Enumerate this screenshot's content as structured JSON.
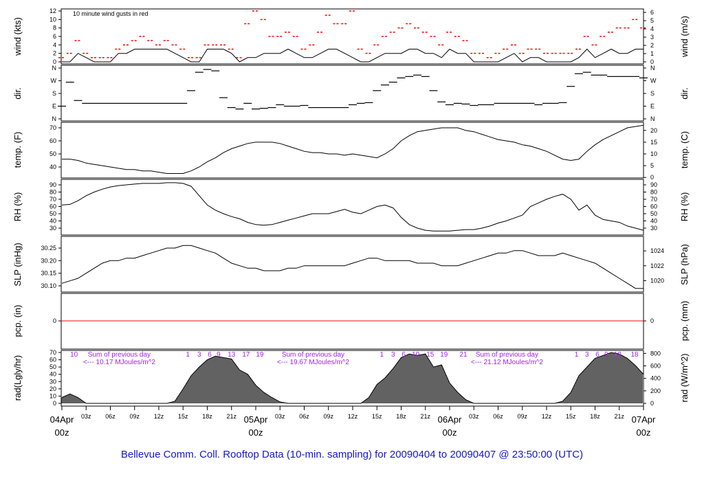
{
  "title": "Bellevue Comm. Coll. Rooftop Data (10-min. sampling) for 20090404  to  20090407 @ 23:50:00  (UTC)",
  "colors": {
    "title": "#1515d0",
    "gust": "#ff0000",
    "day_label": "#ff0000",
    "annotation": "#a020f0",
    "pcp_line": "#ff0000",
    "rad_fill": "#999999"
  },
  "chart_data": {
    "type": "line",
    "x_unit": "hours since 04Apr 00z",
    "x_range": [
      0,
      72
    ],
    "x_ticks": [
      "03z",
      "06z",
      "09z",
      "12z",
      "15z",
      "18z",
      "21z"
    ],
    "day_labels": [
      {
        "day": "04Apr",
        "hour": "00z",
        "at_hour": 0
      },
      {
        "day": "05Apr",
        "hour": "00z",
        "at_hour": 24
      },
      {
        "day": "06Apr",
        "hour": "00z",
        "at_hour": 48
      },
      {
        "day": "07Apr",
        "hour": "00z",
        "at_hour": 72
      }
    ],
    "panels": {
      "wind": {
        "left_label": "wind (kts)",
        "right_label": "wind (m/s)",
        "left_ticks": [
          0,
          2,
          4,
          6,
          8,
          10,
          12
        ],
        "right_ticks": [
          0,
          1,
          2,
          3,
          4,
          5,
          6
        ],
        "annotation": "10  minute wind gusts in red",
        "speed": [
          0,
          0,
          2,
          1,
          0,
          0,
          0,
          2,
          2,
          3,
          3,
          3,
          3,
          3,
          2,
          1,
          0,
          0,
          3,
          3,
          3,
          2,
          0,
          1,
          1,
          2,
          2,
          2,
          3,
          2,
          1,
          1,
          2,
          3,
          3,
          2,
          1,
          0,
          0,
          1,
          2,
          2,
          2,
          3,
          3,
          2,
          2,
          1,
          3,
          2,
          2,
          0,
          0,
          0,
          0,
          1,
          2,
          0,
          1,
          1,
          0,
          0,
          0,
          0,
          1,
          3,
          1,
          2,
          3,
          2,
          2,
          3,
          3
        ],
        "gust": [
          1,
          2,
          5,
          2,
          1,
          1,
          1,
          3,
          4,
          5,
          6,
          5,
          4,
          5,
          4,
          3,
          1,
          1,
          4,
          4,
          4,
          3,
          1,
          9,
          12,
          10,
          6,
          6,
          7,
          6,
          3,
          4,
          7,
          11,
          9,
          9,
          12,
          3,
          2,
          4,
          6,
          7,
          8,
          9,
          8,
          7,
          6,
          4,
          7,
          6,
          5,
          2,
          2,
          1,
          2,
          3,
          4,
          2,
          3,
          3,
          2,
          2,
          2,
          2,
          3,
          6,
          4,
          6,
          7,
          8,
          8,
          10,
          8
        ]
      },
      "dir": {
        "left_label": "dir.",
        "right_label": "dir.",
        "ticks": [
          "N",
          "E",
          "S",
          "W",
          "N"
        ],
        "degrees": [
          90,
          260,
          130,
          110,
          110,
          110,
          110,
          110,
          110,
          110,
          110,
          110,
          110,
          110,
          110,
          110,
          200,
          330,
          350,
          340,
          150,
          80,
          70,
          110,
          70,
          75,
          80,
          100,
          90,
          90,
          95,
          80,
          80,
          80,
          80,
          80,
          100,
          110,
          115,
          200,
          240,
          260,
          290,
          300,
          310,
          300,
          200,
          120,
          100,
          110,
          105,
          95,
          100,
          100,
          110,
          110,
          110,
          110,
          110,
          100,
          110,
          110,
          115,
          230,
          320,
          330,
          310,
          310,
          300,
          300,
          300,
          300,
          290
        ]
      },
      "temp": {
        "left_label": "temp. (F)",
        "right_label": "temp. (C)",
        "left_ticks": [
          40,
          50,
          60,
          70
        ],
        "right_ticks": [
          0,
          5,
          10,
          15,
          20
        ],
        "values": [
          46,
          46,
          45,
          43,
          42,
          41,
          40,
          39,
          38,
          38,
          37,
          37,
          36,
          35,
          35,
          35,
          37,
          40,
          44,
          47,
          51,
          54,
          56,
          58,
          59,
          59,
          59,
          58,
          56,
          54,
          52,
          51,
          51,
          50,
          50,
          49,
          50,
          49,
          48,
          47,
          50,
          54,
          60,
          64,
          67,
          68,
          69,
          70,
          70,
          70,
          68,
          67,
          65,
          63,
          61,
          60,
          59,
          57,
          56,
          54,
          52,
          49,
          46,
          45,
          46,
          52,
          57,
          61,
          64,
          67,
          70,
          71,
          72
        ]
      },
      "rh": {
        "left_label": "RH (%)",
        "right_label": "RH (%)",
        "ticks": [
          30,
          40,
          50,
          60,
          70,
          80,
          90
        ],
        "values": [
          62,
          63,
          68,
          75,
          80,
          84,
          87,
          89,
          90,
          91,
          92,
          92,
          92,
          93,
          93,
          92,
          88,
          75,
          62,
          55,
          50,
          46,
          43,
          38,
          35,
          34,
          35,
          38,
          41,
          44,
          47,
          50,
          50,
          50,
          53,
          56,
          52,
          50,
          55,
          60,
          62,
          58,
          45,
          35,
          30,
          27,
          26,
          26,
          26,
          27,
          28,
          28,
          30,
          33,
          37,
          40,
          44,
          48,
          60,
          65,
          70,
          74,
          77,
          70,
          55,
          62,
          48,
          42,
          40,
          38,
          33,
          30,
          27
        ]
      },
      "slp": {
        "left_label": "SLP (inHg)",
        "right_label": "SLP (hPa)",
        "left_ticks": [
          "30.10",
          "30.15",
          "30.20",
          "30.25"
        ],
        "right_ticks": [
          1020,
          1022,
          1024
        ],
        "values": [
          30.11,
          30.12,
          30.13,
          30.15,
          30.17,
          30.19,
          30.2,
          30.2,
          30.21,
          30.21,
          30.22,
          30.23,
          30.24,
          30.25,
          30.25,
          30.26,
          30.26,
          30.25,
          30.24,
          30.23,
          30.21,
          30.19,
          30.18,
          30.17,
          30.17,
          30.16,
          30.16,
          30.16,
          30.17,
          30.17,
          30.18,
          30.18,
          30.18,
          30.18,
          30.18,
          30.18,
          30.19,
          30.2,
          30.21,
          30.21,
          30.2,
          30.2,
          30.2,
          30.2,
          30.19,
          30.19,
          30.19,
          30.18,
          30.18,
          30.18,
          30.19,
          30.2,
          30.21,
          30.22,
          30.23,
          30.23,
          30.24,
          30.24,
          30.23,
          30.22,
          30.22,
          30.22,
          30.23,
          30.22,
          30.21,
          30.2,
          30.19,
          30.17,
          30.15,
          30.13,
          30.11,
          30.09,
          30.09
        ]
      },
      "pcp": {
        "left_label": "pcp. (in)",
        "right_label": "pcp. (mm)",
        "left_ticks": [
          0
        ],
        "right_ticks": [
          0
        ],
        "values_total": 0
      },
      "rad": {
        "left_label": "rad(Lgly/hr)",
        "right_label": "rad (W/m^2)",
        "left_ticks": [
          0,
          10,
          20,
          30,
          40,
          50,
          60,
          70
        ],
        "right_ticks": [
          0,
          200,
          400,
          600,
          800
        ],
        "values": [
          8,
          13,
          8,
          0,
          0,
          0,
          0,
          0,
          0,
          0,
          0,
          0,
          0,
          0,
          3,
          20,
          38,
          50,
          60,
          65,
          63,
          61,
          46,
          40,
          25,
          15,
          8,
          2,
          0,
          0,
          0,
          0,
          0,
          0,
          0,
          0,
          0,
          0,
          8,
          26,
          35,
          48,
          63,
          68,
          66,
          68,
          50,
          53,
          28,
          15,
          5,
          0,
          0,
          0,
          0,
          0,
          0,
          0,
          0,
          0,
          0,
          0,
          3,
          15,
          38,
          50,
          62,
          66,
          70,
          68,
          62,
          52,
          40
        ],
        "hour_labels": [
          {
            "text": "10",
            "at_hour": 1.5
          },
          {
            "text": "1",
            "at_hour": 15.6
          },
          {
            "text": "3",
            "at_hour": 17.0
          },
          {
            "text": "6",
            "at_hour": 18.3
          },
          {
            "text": "9",
            "at_hour": 19.4
          },
          {
            "text": "13",
            "at_hour": 21.0
          },
          {
            "text": "17",
            "at_hour": 22.8
          },
          {
            "text": "19",
            "at_hour": 24.5
          },
          {
            "text": "1",
            "at_hour": 39.6
          },
          {
            "text": "3",
            "at_hour": 41.0
          },
          {
            "text": "6",
            "at_hour": 42.3
          },
          {
            "text": "10",
            "at_hour": 43.8
          },
          {
            "text": "15",
            "at_hour": 45.6
          },
          {
            "text": "19",
            "at_hour": 47.3
          },
          {
            "text": "21",
            "at_hour": 49.7
          },
          {
            "text": "1",
            "at_hour": 63.7
          },
          {
            "text": "3",
            "at_hour": 65.0
          },
          {
            "text": "6",
            "at_hour": 66.3
          },
          {
            "text": "9",
            "at_hour": 67.4
          },
          {
            "text": "13",
            "at_hour": 68.8
          },
          {
            "text": "18",
            "at_hour": 70.9
          }
        ],
        "sums": [
          {
            "line1": "Sum of previous day",
            "line2": "<--- 10.17 MJoules/m^2",
            "at_hour": 7.1
          },
          {
            "line1": "Sum of previous day",
            "line2": "<--- 19.67 MJoules/m^2",
            "at_hour": 31.1
          },
          {
            "line1": "Sum of previous day",
            "line2": "<--- 21.12 MJoules/m^2",
            "at_hour": 55.1
          }
        ]
      }
    }
  }
}
